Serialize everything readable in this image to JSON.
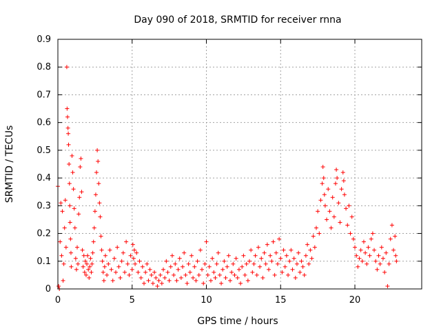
{
  "chart_data": {
    "type": "scatter",
    "title": "Day 090 of 2018, SRMTID for receiver rnna",
    "xlabel": "GPS time / hours",
    "ylabel": "SRMTID / TECUs",
    "xlim": [
      0,
      24.5
    ],
    "ylim": [
      0,
      0.9
    ],
    "xticks": [
      0,
      5,
      10,
      15,
      20
    ],
    "xtick_labels": [
      "0",
      "5",
      "10",
      "15",
      "20"
    ],
    "yticks": [
      0,
      0.1,
      0.2,
      0.3,
      0.4,
      0.5,
      0.6,
      0.7,
      0.8,
      0.9
    ],
    "ytick_labels": [
      "0",
      "0.1",
      "0.2",
      "0.3",
      "0.4",
      "0.5",
      "0.6",
      "0.7",
      "0.8",
      "0.9"
    ],
    "grid": true,
    "marker": "+",
    "color": "#ff0000",
    "series": [
      {
        "name": "rnna",
        "points": [
          [
            0.0,
            0.37
          ],
          [
            0.05,
            0.01
          ],
          [
            0.1,
            0.0
          ],
          [
            0.15,
            0.17
          ],
          [
            0.2,
            0.31
          ],
          [
            0.25,
            0.12
          ],
          [
            0.3,
            0.28
          ],
          [
            0.35,
            0.03
          ],
          [
            0.4,
            0.09
          ],
          [
            0.45,
            0.22
          ],
          [
            0.5,
            0.32
          ],
          [
            0.55,
            0.15
          ],
          [
            0.6,
            0.8
          ],
          [
            0.62,
            0.65
          ],
          [
            0.65,
            0.62
          ],
          [
            0.68,
            0.58
          ],
          [
            0.7,
            0.56
          ],
          [
            0.72,
            0.52
          ],
          [
            0.75,
            0.45
          ],
          [
            0.78,
            0.38
          ],
          [
            0.8,
            0.3
          ],
          [
            0.82,
            0.24
          ],
          [
            0.85,
            0.18
          ],
          [
            0.88,
            0.13
          ],
          [
            0.9,
            0.08
          ],
          [
            0.95,
            0.48
          ],
          [
            1.0,
            0.42
          ],
          [
            1.05,
            0.36
          ],
          [
            1.1,
            0.29
          ],
          [
            1.15,
            0.22
          ],
          [
            1.2,
            0.11
          ],
          [
            1.25,
            0.07
          ],
          [
            1.3,
            0.15
          ],
          [
            1.35,
            0.09
          ],
          [
            1.4,
            0.27
          ],
          [
            1.45,
            0.33
          ],
          [
            1.5,
            0.44
          ],
          [
            1.55,
            0.47
          ],
          [
            1.6,
            0.35
          ],
          [
            1.65,
            0.14
          ],
          [
            1.7,
            0.08
          ],
          [
            1.75,
            0.12
          ],
          [
            1.8,
            0.06
          ],
          [
            1.85,
            0.1
          ],
          [
            1.9,
            0.05
          ],
          [
            1.95,
            0.09
          ],
          [
            2.0,
            0.12
          ],
          [
            2.05,
            0.07
          ],
          [
            2.1,
            0.04
          ],
          [
            2.15,
            0.08
          ],
          [
            2.2,
            0.11
          ],
          [
            2.25,
            0.06
          ],
          [
            2.3,
            0.09
          ],
          [
            2.35,
            0.13
          ],
          [
            2.4,
            0.17
          ],
          [
            2.45,
            0.22
          ],
          [
            2.5,
            0.28
          ],
          [
            2.55,
            0.34
          ],
          [
            2.6,
            0.42
          ],
          [
            2.65,
            0.5
          ],
          [
            2.7,
            0.46
          ],
          [
            2.75,
            0.38
          ],
          [
            2.8,
            0.31
          ],
          [
            2.85,
            0.26
          ],
          [
            2.9,
            0.19
          ],
          [
            2.95,
            0.14
          ],
          [
            3.0,
            0.1
          ],
          [
            3.05,
            0.06
          ],
          [
            3.1,
            0.03
          ],
          [
            3.15,
            0.08
          ],
          [
            3.2,
            0.12
          ],
          [
            3.3,
            0.05
          ],
          [
            3.4,
            0.09
          ],
          [
            3.5,
            0.14
          ],
          [
            3.6,
            0.07
          ],
          [
            3.7,
            0.03
          ],
          [
            3.8,
            0.11
          ],
          [
            3.9,
            0.06
          ],
          [
            4.0,
            0.15
          ],
          [
            4.1,
            0.08
          ],
          [
            4.2,
            0.04
          ],
          [
            4.3,
            0.1
          ],
          [
            4.4,
            0.13
          ],
          [
            4.5,
            0.06
          ],
          [
            4.6,
            0.17
          ],
          [
            4.7,
            0.09
          ],
          [
            4.8,
            0.05
          ],
          [
            4.9,
            0.12
          ],
          [
            5.0,
            0.07
          ],
          [
            5.05,
            0.16
          ],
          [
            5.1,
            0.11
          ],
          [
            5.15,
            0.14
          ],
          [
            5.2,
            0.09
          ],
          [
            5.3,
            0.13
          ],
          [
            5.4,
            0.06
          ],
          [
            5.5,
            0.1
          ],
          [
            5.6,
            0.04
          ],
          [
            5.7,
            0.08
          ],
          [
            5.8,
            0.02
          ],
          [
            5.9,
            0.06
          ],
          [
            6.0,
            0.09
          ],
          [
            6.1,
            0.03
          ],
          [
            6.2,
            0.07
          ],
          [
            6.3,
            0.05
          ],
          [
            6.4,
            0.02
          ],
          [
            6.5,
            0.06
          ],
          [
            6.6,
            0.04
          ],
          [
            6.7,
            0.01
          ],
          [
            6.8,
            0.03
          ],
          [
            6.9,
            0.05
          ],
          [
            7.0,
            0.02
          ],
          [
            7.1,
            0.07
          ],
          [
            7.2,
            0.04
          ],
          [
            7.3,
            0.1
          ],
          [
            7.4,
            0.06
          ],
          [
            7.5,
            0.03
          ],
          [
            7.6,
            0.08
          ],
          [
            7.7,
            0.12
          ],
          [
            7.8,
            0.05
          ],
          [
            7.9,
            0.09
          ],
          [
            8.0,
            0.03
          ],
          [
            8.1,
            0.07
          ],
          [
            8.2,
            0.11
          ],
          [
            8.3,
            0.04
          ],
          [
            8.4,
            0.08
          ],
          [
            8.5,
            0.13
          ],
          [
            8.6,
            0.05
          ],
          [
            8.7,
            0.02
          ],
          [
            8.8,
            0.09
          ],
          [
            8.9,
            0.06
          ],
          [
            9.0,
            0.12
          ],
          [
            9.1,
            0.04
          ],
          [
            9.2,
            0.08
          ],
          [
            9.3,
            0.03
          ],
          [
            9.4,
            0.1
          ],
          [
            9.5,
            0.05
          ],
          [
            9.6,
            0.14
          ],
          [
            9.7,
            0.07
          ],
          [
            9.8,
            0.02
          ],
          [
            9.9,
            0.09
          ],
          [
            10.0,
            0.17
          ],
          [
            10.1,
            0.05
          ],
          [
            10.2,
            0.08
          ],
          [
            10.3,
            0.03
          ],
          [
            10.4,
            0.11
          ],
          [
            10.5,
            0.06
          ],
          [
            10.6,
            0.04
          ],
          [
            10.7,
            0.09
          ],
          [
            10.8,
            0.13
          ],
          [
            10.9,
            0.05
          ],
          [
            11.0,
            0.02
          ],
          [
            11.1,
            0.07
          ],
          [
            11.2,
            0.1
          ],
          [
            11.3,
            0.04
          ],
          [
            11.4,
            0.08
          ],
          [
            11.5,
            0.12
          ],
          [
            11.6,
            0.03
          ],
          [
            11.7,
            0.06
          ],
          [
            11.8,
            0.09
          ],
          [
            11.9,
            0.05
          ],
          [
            12.0,
            0.11
          ],
          [
            12.1,
            0.04
          ],
          [
            12.2,
            0.07
          ],
          [
            12.3,
            0.02
          ],
          [
            12.4,
            0.08
          ],
          [
            12.5,
            0.12
          ],
          [
            12.6,
            0.05
          ],
          [
            12.7,
            0.09
          ],
          [
            12.8,
            0.03
          ],
          [
            12.9,
            0.1
          ],
          [
            13.0,
            0.14
          ],
          [
            13.1,
            0.06
          ],
          [
            13.2,
            0.09
          ],
          [
            13.3,
            0.12
          ],
          [
            13.4,
            0.05
          ],
          [
            13.5,
            0.15
          ],
          [
            13.6,
            0.08
          ],
          [
            13.7,
            0.11
          ],
          [
            13.8,
            0.04
          ],
          [
            13.9,
            0.13
          ],
          [
            14.0,
            0.09
          ],
          [
            14.1,
            0.16
          ],
          [
            14.2,
            0.07
          ],
          [
            14.3,
            0.12
          ],
          [
            14.4,
            0.1
          ],
          [
            14.5,
            0.17
          ],
          [
            14.6,
            0.05
          ],
          [
            14.7,
            0.13
          ],
          [
            14.8,
            0.09
          ],
          [
            14.9,
            0.18
          ],
          [
            15.0,
            0.11
          ],
          [
            15.1,
            0.06
          ],
          [
            15.2,
            0.14
          ],
          [
            15.3,
            0.08
          ],
          [
            15.4,
            0.12
          ],
          [
            15.5,
            0.05
          ],
          [
            15.6,
            0.1
          ],
          [
            15.7,
            0.14
          ],
          [
            15.8,
            0.07
          ],
          [
            15.9,
            0.11
          ],
          [
            16.0,
            0.04
          ],
          [
            16.1,
            0.09
          ],
          [
            16.2,
            0.13
          ],
          [
            16.3,
            0.06
          ],
          [
            16.4,
            0.1
          ],
          [
            16.5,
            0.08
          ],
          [
            16.6,
            0.05
          ],
          [
            16.7,
            0.12
          ],
          [
            16.8,
            0.16
          ],
          [
            16.9,
            0.09
          ],
          [
            17.0,
            0.14
          ],
          [
            17.1,
            0.11
          ],
          [
            17.2,
            0.19
          ],
          [
            17.3,
            0.15
          ],
          [
            17.4,
            0.22
          ],
          [
            17.5,
            0.28
          ],
          [
            17.6,
            0.2
          ],
          [
            17.7,
            0.32
          ],
          [
            17.8,
            0.38
          ],
          [
            17.85,
            0.44
          ],
          [
            17.9,
            0.4
          ],
          [
            17.95,
            0.34
          ],
          [
            18.0,
            0.3
          ],
          [
            18.1,
            0.25
          ],
          [
            18.2,
            0.36
          ],
          [
            18.3,
            0.28
          ],
          [
            18.4,
            0.22
          ],
          [
            18.5,
            0.33
          ],
          [
            18.6,
            0.26
          ],
          [
            18.7,
            0.38
          ],
          [
            18.75,
            0.43
          ],
          [
            18.8,
            0.4
          ],
          [
            18.9,
            0.31
          ],
          [
            19.0,
            0.24
          ],
          [
            19.1,
            0.36
          ],
          [
            19.2,
            0.42
          ],
          [
            19.25,
            0.39
          ],
          [
            19.3,
            0.34
          ],
          [
            19.4,
            0.29
          ],
          [
            19.5,
            0.23
          ],
          [
            19.6,
            0.3
          ],
          [
            19.7,
            0.2
          ],
          [
            19.8,
            0.26
          ],
          [
            19.9,
            0.18
          ],
          [
            20.0,
            0.15
          ],
          [
            20.1,
            0.12
          ],
          [
            20.2,
            0.08
          ],
          [
            20.3,
            0.11
          ],
          [
            20.4,
            0.14
          ],
          [
            20.5,
            0.1
          ],
          [
            20.6,
            0.17
          ],
          [
            20.7,
            0.13
          ],
          [
            20.8,
            0.09
          ],
          [
            20.9,
            0.15
          ],
          [
            21.0,
            0.12
          ],
          [
            21.1,
            0.18
          ],
          [
            21.2,
            0.2
          ],
          [
            21.3,
            0.14
          ],
          [
            21.4,
            0.1
          ],
          [
            21.5,
            0.07
          ],
          [
            21.6,
            0.12
          ],
          [
            21.7,
            0.09
          ],
          [
            21.8,
            0.15
          ],
          [
            21.9,
            0.11
          ],
          [
            22.0,
            0.06
          ],
          [
            22.1,
            0.13
          ],
          [
            22.2,
            0.01
          ],
          [
            22.3,
            0.09
          ],
          [
            22.4,
            0.18
          ],
          [
            22.5,
            0.23
          ],
          [
            22.6,
            0.14
          ],
          [
            22.7,
            0.19
          ],
          [
            22.75,
            0.12
          ],
          [
            22.8,
            0.1
          ]
        ]
      }
    ]
  }
}
